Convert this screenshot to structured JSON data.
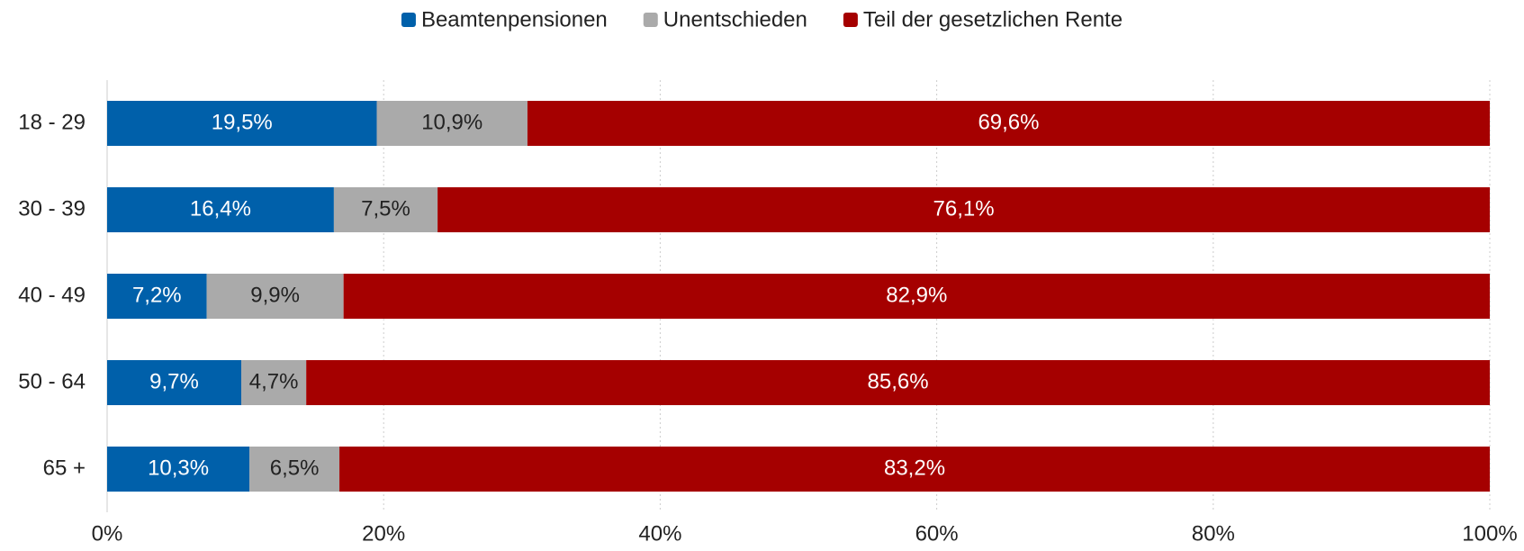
{
  "chart_data": {
    "type": "stacked_bar",
    "orientation": "horizontal",
    "categories": [
      "18 - 29",
      "30 - 39",
      "40 - 49",
      "50 - 64",
      "65 +"
    ],
    "series": [
      {
        "name": "Beamtenpensionen",
        "color": "#0060aa",
        "values": [
          19.5,
          16.4,
          7.2,
          9.7,
          10.3
        ],
        "value_labels": [
          "19,5%",
          "16,4%",
          "7,2%",
          "9,7%",
          "10,3%"
        ]
      },
      {
        "name": "Unentschieden",
        "color": "#aaaaaa",
        "values": [
          10.9,
          7.5,
          9.9,
          4.7,
          6.5
        ],
        "value_labels": [
          "10,9%",
          "7,5%",
          "9,9%",
          "4,7%",
          "6,5%"
        ]
      },
      {
        "name": "Teil der gesetzlichen Rente",
        "color": "#a50000",
        "values": [
          69.6,
          76.1,
          82.9,
          85.6,
          83.2
        ],
        "value_labels": [
          "69,6%",
          "76,1%",
          "82,9%",
          "85,6%",
          "83,2%"
        ]
      }
    ],
    "xlim": [
      0,
      100
    ],
    "xticks": [
      {
        "value": 0,
        "label": "0%"
      },
      {
        "value": 20,
        "label": "20%"
      },
      {
        "value": 40,
        "label": "40%"
      },
      {
        "value": 60,
        "label": "60%"
      },
      {
        "value": 80,
        "label": "80%"
      },
      {
        "value": 100,
        "label": "100%"
      }
    ],
    "grid": true,
    "legend": "top"
  }
}
